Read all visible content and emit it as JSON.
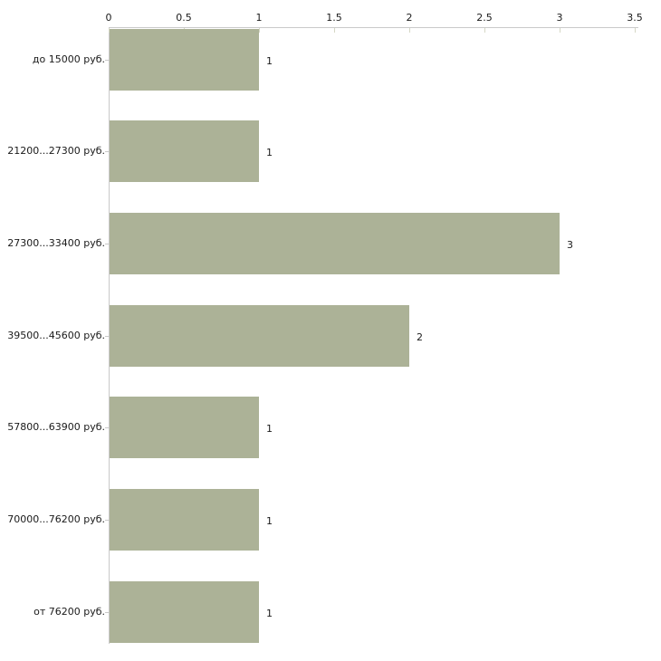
{
  "chart_data": {
    "type": "bar",
    "orientation": "horizontal",
    "title": "",
    "xlabel": "",
    "ylabel": "",
    "categories": [
      "до 15000 руб.",
      "21200...27300 руб.",
      "27300...33400 руб.",
      "39500...45600 руб.",
      "57800...63900 руб.",
      "70000...76200 руб.",
      "от 76200 руб."
    ],
    "values": [
      1,
      1,
      3,
      2,
      1,
      1,
      1
    ],
    "value_labels": [
      "1",
      "1",
      "3",
      "2",
      "1",
      "1",
      "1"
    ],
    "x_axis": {
      "position": "top",
      "range": [
        0,
        3.5
      ],
      "tick_values": [
        0,
        0.5,
        1,
        1.5,
        2,
        2.5,
        3,
        3.5
      ],
      "tick_labels": [
        "0",
        "0.5",
        "1",
        "1.5",
        "2",
        "2.5",
        "3",
        "3.5"
      ]
    },
    "grid": false,
    "legend": false,
    "colors": {
      "bar_fill": "#acb297",
      "axis_line": "#c9c9c9",
      "tick_mark": "#d5d7c5",
      "text": "#1a1a1a",
      "background": "#ffffff"
    }
  }
}
